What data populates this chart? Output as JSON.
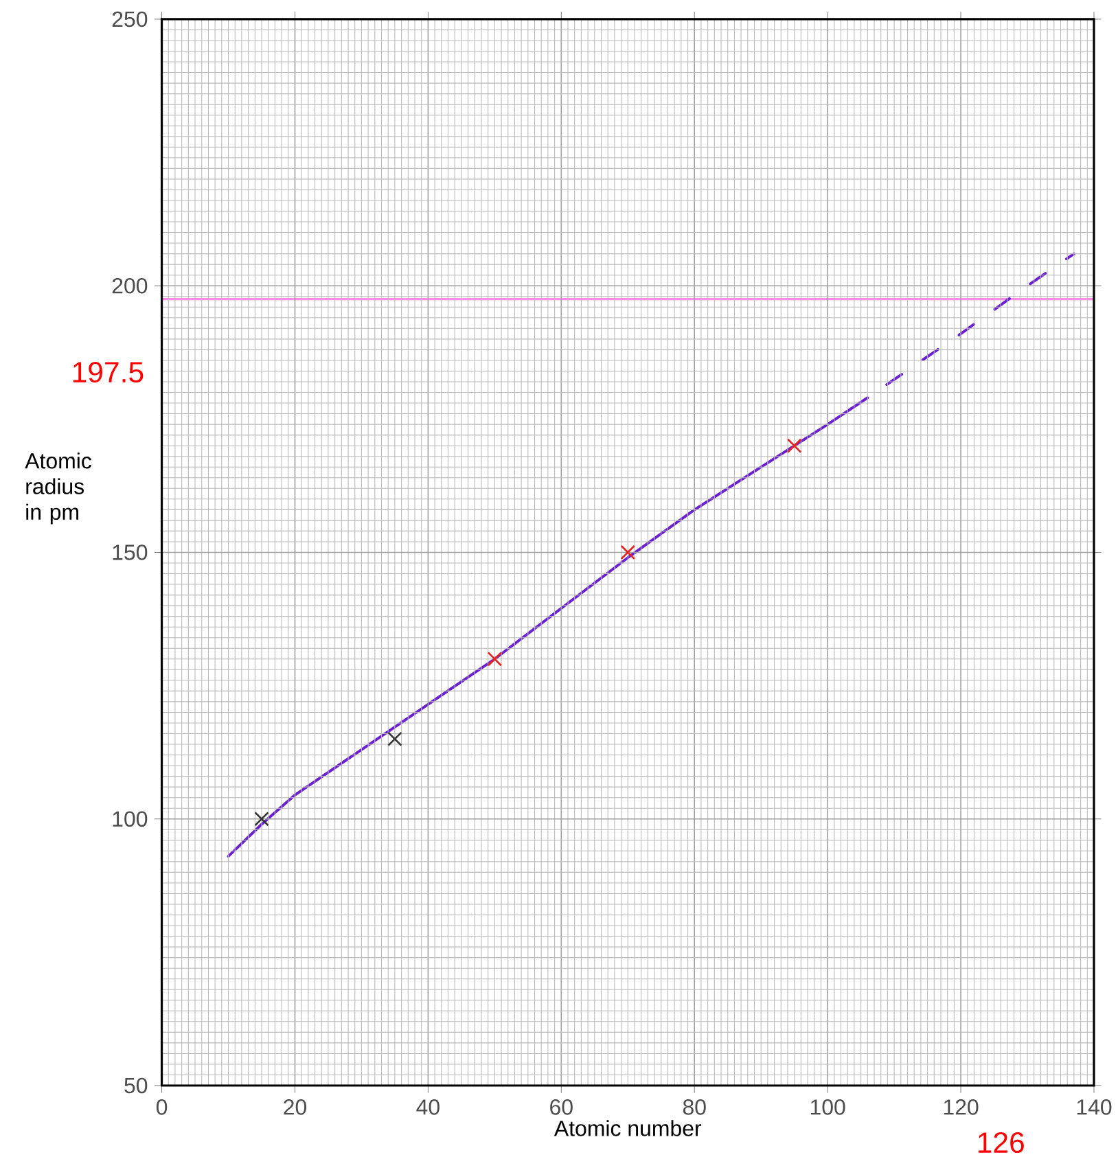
{
  "chart_data": {
    "type": "line",
    "xlabel": "Atomic number",
    "ylabel": "Atomic radius in pm",
    "xlim": [
      0,
      140
    ],
    "xticks": [
      0,
      20,
      40,
      60,
      80,
      100,
      120,
      140
    ],
    "ylim": [
      50,
      250
    ],
    "yticks": [
      50,
      100,
      150,
      200,
      250
    ],
    "grid": true,
    "series": [
      {
        "color": "#6a1fd0",
        "line_style": "solid",
        "marker": "none",
        "x": [
          10,
          15,
          20,
          30,
          40,
          50,
          60,
          70,
          80,
          90,
          100,
          106
        ],
        "values": [
          93,
          99,
          104.5,
          113,
          121.5,
          130,
          139.5,
          149,
          158,
          166,
          174,
          179
        ]
      },
      {
        "color": "#6a1fd0",
        "line_style": "dashed",
        "marker": "none",
        "x": [
          106,
          120,
          130,
          137
        ],
        "values": [
          179,
          191,
          200,
          206
        ]
      },
      {
        "type": "scatter",
        "color": "#333333",
        "marker": "cross",
        "x": [
          15,
          35
        ],
        "values": [
          100,
          115
        ]
      },
      {
        "type": "scatter",
        "color": "#e8221e",
        "marker": "cross",
        "x": [
          50,
          70,
          95
        ],
        "values": [
          130,
          150,
          170
        ]
      }
    ],
    "ref_lines": [
      {
        "axis": "y",
        "value": 197.5,
        "color": "#ff88e8"
      }
    ],
    "annotations": [
      {
        "text": "197.5",
        "x": 0,
        "y": 197.5
      },
      "126"
    ]
  }
}
